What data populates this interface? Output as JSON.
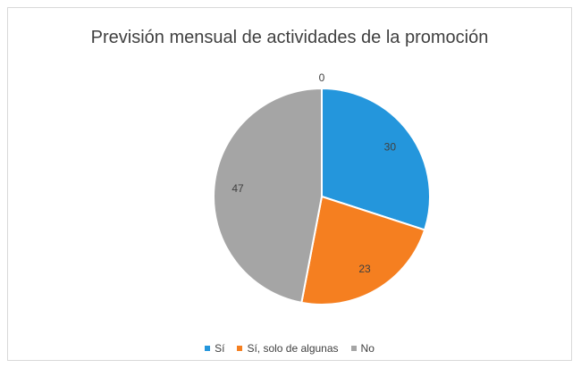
{
  "chart_data": {
    "type": "pie",
    "title": "Previsión mensual de actividades de la promoción",
    "categories": [
      "Sí",
      "Sí, solo de algunas",
      "No"
    ],
    "values": [
      30,
      23,
      47
    ],
    "zero_label": "0",
    "colors": [
      "#2496dc",
      "#f57f20",
      "#a5a5a5"
    ],
    "legend_position": "bottom"
  }
}
